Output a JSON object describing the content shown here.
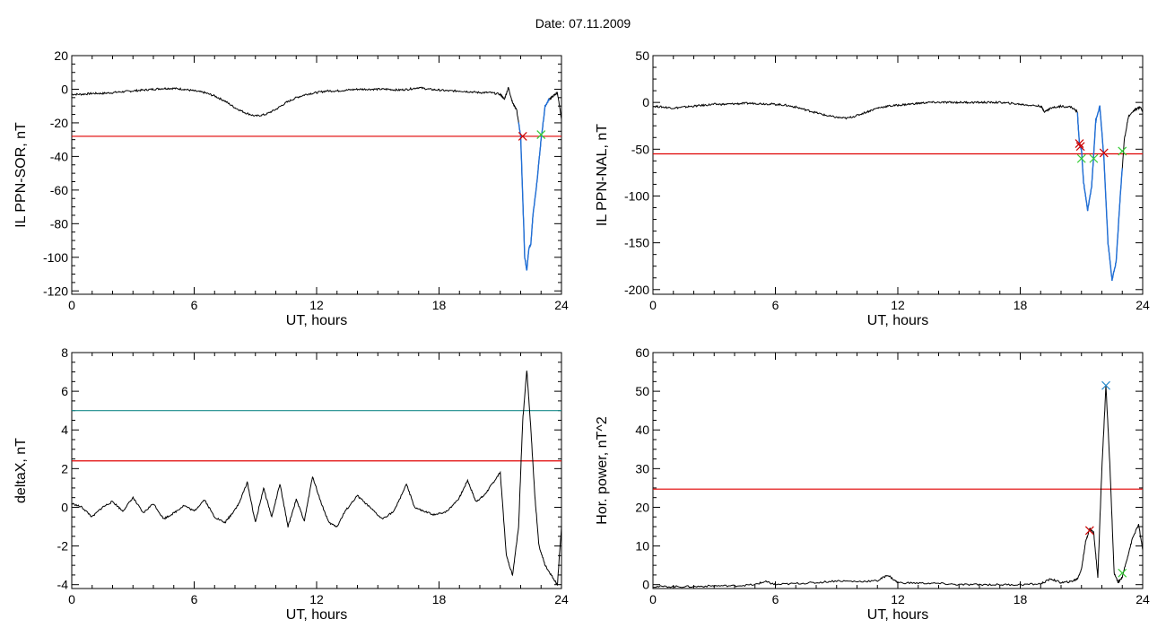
{
  "figure": {
    "title": "Date:  07.11.2009"
  },
  "colors": {
    "trace": "#000000",
    "highlight": "#1f6fd8",
    "red_line": "#e00000",
    "teal_line": "#1a8c8c",
    "start_marker": "#cc0000",
    "end_marker": "#33cc33",
    "peak_marker": "#2a8ccc"
  },
  "chart_data": [
    {
      "type": "line",
      "panel": "top-left",
      "title": "",
      "xlabel": "UT, hours",
      "ylabel": "IL PPN-SOR, nT",
      "xlim": [
        0,
        24
      ],
      "ylim": [
        -122,
        20
      ],
      "xticks": [
        0,
        6,
        12,
        18,
        24
      ],
      "xtick_labels": [
        "0",
        "6",
        "12",
        "18",
        "24"
      ],
      "yticks": [
        20,
        0,
        -20,
        -40,
        -60,
        -80,
        -100,
        -120
      ],
      "ytick_labels": [
        "20",
        "0",
        "-20",
        "-40",
        "-60",
        "-80",
        "-100",
        "-120"
      ],
      "series": [
        {
          "x": [
            0,
            0.5,
            1,
            1.5,
            2,
            2.5,
            3,
            3.5,
            4,
            4.5,
            5,
            5.5,
            6,
            6.5,
            7,
            7.5,
            8,
            8.5,
            9,
            9.5,
            10,
            10.5,
            11,
            11.5,
            12,
            12.5,
            13,
            13.5,
            14,
            14.5,
            15,
            15.5,
            16,
            16.5,
            17,
            17.5,
            18,
            18.5,
            19,
            19.5,
            20,
            20.5,
            21,
            21.2,
            21.4,
            21.6,
            21.8,
            22.0,
            22.2,
            22.3,
            22.4,
            22.5,
            22.6,
            22.8,
            23.0,
            23.2,
            23.4,
            23.6,
            23.8,
            24
          ],
          "y": [
            -3,
            -3,
            -2.5,
            -2.5,
            -2,
            -1.5,
            -1,
            -0.5,
            0,
            0.5,
            0.5,
            0,
            -1,
            -2,
            -4,
            -7,
            -11,
            -14,
            -16,
            -15,
            -12,
            -8,
            -5,
            -3,
            -2,
            -1,
            -1,
            -0.5,
            0,
            0,
            0,
            0,
            -0.5,
            0,
            1,
            0,
            -0.5,
            -1,
            -1,
            -1.5,
            -2,
            -2,
            -3,
            -6,
            1,
            -8,
            -12,
            -28,
            -100,
            -108,
            -95,
            -92,
            -75,
            -55,
            -30,
            -10,
            -6,
            -4,
            -2,
            -18
          ]
        }
      ],
      "highlight_x_range": [
        21.9,
        23.4
      ],
      "threshold_lines": [
        {
          "y": -28,
          "color": "red"
        }
      ],
      "markers": [
        {
          "x": 22.1,
          "y": -28,
          "color": "start"
        },
        {
          "x": 23.0,
          "y": -27,
          "color": "end"
        }
      ]
    },
    {
      "type": "line",
      "panel": "top-right",
      "title": "",
      "xlabel": "UT, hours",
      "ylabel": "IL PPN-NAL, nT",
      "xlim": [
        0,
        24
      ],
      "ylim": [
        -205,
        50
      ],
      "xticks": [
        0,
        6,
        12,
        18,
        24
      ],
      "xtick_labels": [
        "0",
        "6",
        "12",
        "18",
        "24"
      ],
      "yticks": [
        50,
        0,
        -50,
        -100,
        -150,
        -200
      ],
      "ytick_labels": [
        "50",
        "0",
        "-50",
        "-100",
        "-150",
        "-200"
      ],
      "series": [
        {
          "x": [
            0,
            0.5,
            1,
            1.5,
            2,
            2.5,
            3,
            3.5,
            4,
            4.5,
            5,
            5.5,
            6,
            6.5,
            7,
            7.5,
            8,
            8.5,
            9,
            9.5,
            10,
            10.5,
            11,
            11.5,
            12,
            12.5,
            13,
            13.5,
            14,
            14.5,
            15,
            15.5,
            16,
            16.5,
            17,
            17.5,
            18,
            18.5,
            19,
            19.2,
            19.5,
            20,
            20.5,
            20.8,
            20.9,
            21.0,
            21.1,
            21.3,
            21.5,
            21.7,
            21.9,
            22.1,
            22.3,
            22.5,
            22.7,
            22.9,
            23.1,
            23.3,
            23.6,
            23.9,
            24
          ],
          "y": [
            -4,
            -5,
            -6,
            -5,
            -4,
            -3,
            -2,
            -2,
            -1.5,
            -1,
            -1,
            -1.5,
            -2,
            -3,
            -5,
            -8,
            -11,
            -14,
            -16,
            -17,
            -14,
            -10,
            -6,
            -4,
            -3,
            -2,
            -1,
            0,
            0,
            0,
            0,
            0,
            0,
            0,
            0,
            -1,
            -2,
            -3,
            -4,
            -10,
            -6,
            -4,
            -5,
            -10,
            -45,
            -50,
            -85,
            -115,
            -90,
            -20,
            -4,
            -60,
            -150,
            -190,
            -170,
            -100,
            -40,
            -15,
            -8,
            -5,
            -10
          ]
        }
      ],
      "highlight_x_range": [
        20.8,
        23.0
      ],
      "threshold_lines": [
        {
          "y": -55,
          "color": "red"
        }
      ],
      "markers": [
        {
          "x": 20.9,
          "y": -44,
          "color": "start"
        },
        {
          "x": 20.95,
          "y": -47,
          "color": "start"
        },
        {
          "x": 21.0,
          "y": -60,
          "color": "end"
        },
        {
          "x": 21.6,
          "y": -60,
          "color": "end"
        },
        {
          "x": 22.1,
          "y": -54,
          "color": "start"
        },
        {
          "x": 23.0,
          "y": -52,
          "color": "end"
        }
      ]
    },
    {
      "type": "line",
      "panel": "bottom-left",
      "title": "",
      "xlabel": "UT, hours",
      "ylabel": "deltaX, nT",
      "xlim": [
        0,
        24
      ],
      "ylim": [
        -4.2,
        8
      ],
      "xticks": [
        0,
        6,
        12,
        18,
        24
      ],
      "xtick_labels": [
        "0",
        "6",
        "12",
        "18",
        "24"
      ],
      "yticks": [
        8,
        6,
        4,
        2,
        0,
        -2,
        -4
      ],
      "ytick_labels": [
        "8",
        "6",
        "4",
        "2",
        "0",
        "-2",
        "-4"
      ],
      "series": [
        {
          "x": [
            0,
            0.5,
            1,
            1.5,
            2,
            2.5,
            3,
            3.5,
            4,
            4.5,
            5,
            5.5,
            6,
            6.5,
            7,
            7.5,
            7.8,
            8.2,
            8.6,
            9.0,
            9.4,
            9.8,
            10.2,
            10.6,
            11.0,
            11.4,
            11.8,
            12.2,
            12.6,
            13.0,
            13.4,
            14.0,
            14.6,
            15.2,
            15.8,
            16.4,
            16.8,
            17.2,
            17.8,
            18.4,
            19.0,
            19.4,
            19.8,
            20.2,
            20.6,
            21.0,
            21.3,
            21.6,
            21.9,
            22.1,
            22.3,
            22.5,
            22.7,
            22.9,
            23.2,
            23.5,
            23.8,
            24
          ],
          "y": [
            0.2,
            0,
            -0.5,
            0,
            0.3,
            -0.2,
            0.5,
            -0.3,
            0.2,
            -0.6,
            -0.3,
            0.1,
            -0.2,
            0.4,
            -0.5,
            -0.8,
            -0.4,
            0.2,
            1.3,
            -0.8,
            1.0,
            -0.5,
            1.2,
            -1.0,
            0.4,
            -0.7,
            1.6,
            0.3,
            -0.8,
            -1.0,
            -0.2,
            0.6,
            0.0,
            -0.6,
            -0.2,
            1.2,
            0.0,
            -0.2,
            -0.4,
            -0.2,
            0.5,
            1.4,
            0.3,
            0.6,
            1.2,
            1.8,
            -2.5,
            -3.5,
            -1.0,
            4.5,
            7.1,
            4.0,
            0.5,
            -2.0,
            -3.0,
            -3.5,
            -4.0,
            -1.0
          ]
        }
      ],
      "threshold_lines": [
        {
          "y": 5.0,
          "color": "teal"
        },
        {
          "y": 2.4,
          "color": "red"
        }
      ]
    },
    {
      "type": "line",
      "panel": "bottom-right",
      "title": "",
      "xlabel": "UT, hours",
      "ylabel": "Hor. power, nT^2",
      "xlim": [
        0,
        24
      ],
      "ylim": [
        -1,
        60
      ],
      "xticks": [
        0,
        6,
        12,
        18,
        24
      ],
      "xtick_labels": [
        "0",
        "6",
        "12",
        "18",
        "24"
      ],
      "yticks": [
        60,
        50,
        40,
        30,
        20,
        10,
        0
      ],
      "ytick_labels": [
        "60",
        "50",
        "40",
        "30",
        "20",
        "10",
        "0"
      ],
      "series": [
        {
          "x": [
            0,
            1,
            2,
            3,
            4,
            5,
            5.5,
            6,
            7,
            8,
            9,
            10,
            11,
            11.5,
            12,
            13,
            14,
            15,
            16,
            17,
            18,
            19,
            19.5,
            20,
            20.5,
            20.8,
            21.0,
            21.2,
            21.4,
            21.6,
            21.8,
            22.0,
            22.2,
            22.4,
            22.6,
            22.8,
            23.0,
            23.2,
            23.5,
            23.8,
            24
          ],
          "y": [
            -0.5,
            -0.5,
            -0.5,
            -0.3,
            -0.3,
            0.0,
            0.8,
            0.0,
            0.3,
            0.5,
            1.0,
            0.8,
            1.0,
            2.5,
            0.5,
            0.4,
            0.3,
            0.0,
            0.0,
            0.0,
            0.0,
            0.2,
            1.5,
            0.5,
            0.8,
            1.5,
            4.0,
            11.0,
            14.5,
            13.5,
            2.0,
            30.0,
            51.5,
            30.0,
            3.0,
            0.5,
            2.0,
            6.0,
            12.0,
            15.5,
            9.0
          ]
        }
      ],
      "threshold_lines": [
        {
          "y": 24.7,
          "color": "red"
        }
      ],
      "markers": [
        {
          "x": 21.4,
          "y": 14,
          "color": "start"
        },
        {
          "x": 22.2,
          "y": 51.5,
          "color": "peak"
        },
        {
          "x": 23.0,
          "y": 3,
          "color": "end"
        }
      ]
    }
  ]
}
